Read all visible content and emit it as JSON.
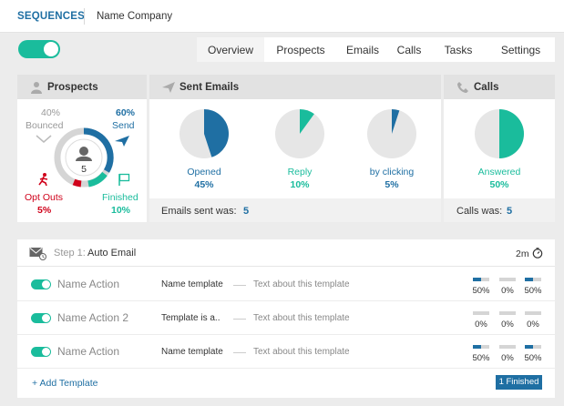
{
  "header": {
    "app": "SEQUENCES",
    "company": "Name Company"
  },
  "tabs": [
    "Overview",
    "Prospects",
    "Emails",
    "Calls",
    "Tasks",
    "Settings"
  ],
  "prospects": {
    "title": "Prospects",
    "center_count": "5",
    "bounced": {
      "pct": "40%",
      "label": "Bounced"
    },
    "send": {
      "pct": "60%",
      "label": "Send"
    },
    "opt_outs": {
      "label": "Opt Outs",
      "pct": "5%"
    },
    "finished": {
      "label": "Finished",
      "pct": "10%"
    }
  },
  "sent_emails": {
    "title": "Sent Emails",
    "stats": [
      {
        "label": "Opened",
        "value": "45%",
        "fraction": 0.45,
        "color": "#1f6fa3"
      },
      {
        "label": "Reply",
        "value": "10%",
        "fraction": 0.1,
        "color": "#1abc9c"
      },
      {
        "label": "by clicking",
        "value": "5%",
        "fraction": 0.05,
        "color": "#1f6fa3"
      }
    ],
    "footer_label": "Emails sent was:",
    "footer_value": "5"
  },
  "calls": {
    "title": "Calls",
    "stat": {
      "label": "Answered",
      "value": "50%",
      "fraction": 0.5,
      "color": "#1abc9c"
    },
    "footer_label": "Calls was:",
    "footer_value": "5"
  },
  "step": {
    "prefix": "Step 1:",
    "title": "Auto Email",
    "duration": "2m",
    "rows": [
      {
        "action": "Name Action",
        "template": "Name template",
        "desc": "Text about this template",
        "metrics": [
          {
            "v": "50%",
            "f": 0.5
          },
          {
            "v": "0%",
            "f": 0
          },
          {
            "v": "50%",
            "f": 0.5
          }
        ]
      },
      {
        "action": "Name Action 2",
        "template": "Template is a..",
        "desc": "Text about this template",
        "metrics": [
          {
            "v": "0%",
            "f": 0
          },
          {
            "v": "0%",
            "f": 0
          },
          {
            "v": "0%",
            "f": 0
          }
        ]
      },
      {
        "action": "Name Action",
        "template": "Name template",
        "desc": "Text about this template",
        "metrics": [
          {
            "v": "50%",
            "f": 0.5
          },
          {
            "v": "0%",
            "f": 0
          },
          {
            "v": "50%",
            "f": 0.5
          }
        ]
      }
    ],
    "add_template": "+ Add Template",
    "finished_badge": "1 Finished"
  },
  "colors": {
    "blue": "#1f6fa3",
    "teal": "#1abc9c",
    "red": "#d0021b",
    "pie_bg": "#e6e6e6"
  }
}
